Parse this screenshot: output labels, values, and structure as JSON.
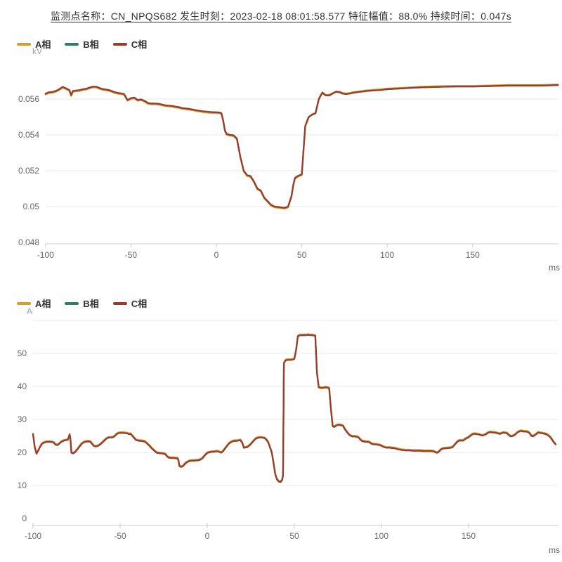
{
  "title": {
    "text": "监测点名称：CN_NPQS682 发生时刻：2023-02-18 08:01:58.577 特征幅值：88.0% 持续时间：0.047s",
    "monitor_point": "CN_NPQS682",
    "event_time": "2023-02-18 08:01:58.577",
    "characteristic_amplitude": "88.0%",
    "duration": "0.047s"
  },
  "colors": {
    "phase_a": "#d0a032",
    "phase_b": "#2e7d64",
    "phase_c": "#9c3a2d",
    "grid_line": "#e8e8e8",
    "axis_line": "#c8ccd0",
    "tick_label": "#666666",
    "unit_label": "#9aa0a6"
  },
  "chart_data": [
    {
      "type": "line",
      "name": "voltage-waveform",
      "y_unit": "kV",
      "x_unit": "ms",
      "xlim": [
        -100,
        200
      ],
      "ylim": [
        0.0478,
        0.0575
      ],
      "grid": true,
      "legend_position": "top-left",
      "x_ticks": [
        -100,
        -50,
        0,
        50,
        100,
        150
      ],
      "x_tick_labels": [
        "-100",
        "-50",
        "0",
        "50",
        "100",
        "150"
      ],
      "y_ticks": [
        0.048,
        0.05,
        0.052,
        0.054,
        0.056
      ],
      "y_tick_labels": [
        "0.048",
        "0.05",
        "0.052",
        "0.054",
        "0.056"
      ],
      "x": [
        -100,
        -98,
        -96,
        -94,
        -92,
        -90,
        -88,
        -86,
        -85,
        -84,
        -82,
        -80,
        -78,
        -76,
        -74,
        -72,
        -70,
        -68,
        -66,
        -64,
        -62,
        -60,
        -58,
        -56,
        -54,
        -52,
        -50,
        -48,
        -46,
        -44,
        -42,
        -40,
        -38,
        -36,
        -34,
        -32,
        -30,
        -28,
        -26,
        -24,
        -22,
        -20,
        -18,
        -16,
        -14,
        -12,
        -10,
        -8,
        -6,
        -4,
        -2,
        0,
        2,
        3,
        4,
        5,
        6,
        8,
        10,
        12,
        14,
        16,
        18,
        20,
        22,
        24,
        26,
        28,
        30,
        32,
        34,
        36,
        38,
        40,
        42,
        44,
        45,
        46,
        48,
        50,
        52,
        54,
        56,
        58,
        60,
        62,
        64,
        66,
        68,
        70,
        72,
        74,
        76,
        78,
        80,
        84,
        88,
        92,
        96,
        100,
        110,
        120,
        130,
        140,
        150,
        160,
        170,
        180,
        190,
        200
      ],
      "series": [
        {
          "name": "A相",
          "color": "#d0a032",
          "derived_from": "C相",
          "delta_before": -5e-05,
          "delta_after": 4e-05,
          "delta_switch_x": 55
        },
        {
          "name": "B相",
          "color": "#2e7d64",
          "derived_from": "C相",
          "delta_before": 0,
          "delta_after": 0,
          "delta_switch_x": 0
        },
        {
          "name": "C相",
          "color": "#9c3a2d",
          "values": [
            0.0563,
            0.05638,
            0.0564,
            0.05645,
            0.05655,
            0.05668,
            0.0566,
            0.0565,
            0.05622,
            0.05645,
            0.05648,
            0.0565,
            0.05655,
            0.05658,
            0.05665,
            0.0567,
            0.05668,
            0.0566,
            0.05655,
            0.05652,
            0.05648,
            0.0564,
            0.05635,
            0.05632,
            0.05628,
            0.05595,
            0.05605,
            0.05608,
            0.05595,
            0.05598,
            0.0559,
            0.05578,
            0.05575,
            0.05575,
            0.05574,
            0.0557,
            0.05565,
            0.05563,
            0.05562,
            0.05558,
            0.05555,
            0.0555,
            0.05548,
            0.05545,
            0.05542,
            0.05538,
            0.05535,
            0.05532,
            0.0553,
            0.05528,
            0.05527,
            0.05526,
            0.05525,
            0.0552,
            0.0548,
            0.05425,
            0.05405,
            0.054,
            0.05398,
            0.0538,
            0.0528,
            0.052,
            0.05175,
            0.0517,
            0.0514,
            0.051,
            0.0509,
            0.0505,
            0.0503,
            0.0501,
            0.05,
            0.04998,
            0.04995,
            0.04993,
            0.05,
            0.0506,
            0.0512,
            0.0516,
            0.05172,
            0.0518,
            0.0545,
            0.055,
            0.05512,
            0.0552,
            0.056,
            0.05635,
            0.0562,
            0.0562,
            0.0563,
            0.0564,
            0.05638,
            0.0563,
            0.05628,
            0.0563,
            0.05635,
            0.0564,
            0.05645,
            0.05648,
            0.0565,
            0.05655,
            0.0566,
            0.05665,
            0.05668,
            0.0567,
            0.0567,
            0.05672,
            0.05675,
            0.05675,
            0.05675,
            0.05678
          ]
        }
      ]
    },
    {
      "type": "line",
      "name": "current-waveform",
      "y_unit": "A",
      "x_unit": "ms",
      "xlim": [
        -100,
        200
      ],
      "ylim": [
        -3,
        60
      ],
      "grid": true,
      "legend_position": "top-left",
      "x_ticks": [
        -100,
        -50,
        0,
        50,
        100,
        150
      ],
      "x_tick_labels": [
        "-100",
        "-50",
        "0",
        "50",
        "100",
        "150"
      ],
      "y_ticks": [
        0,
        10,
        20,
        30,
        40,
        50
      ],
      "y_tick_labels": [
        "0",
        "10",
        "20",
        "30",
        "40",
        "50"
      ],
      "y_gridlines_extra": [
        10,
        20,
        30,
        40,
        50,
        60
      ],
      "x": [
        -100,
        -99,
        -98,
        -97,
        -96,
        -95,
        -94,
        -92,
        -90,
        -89,
        -88,
        -87,
        -86,
        -85,
        -84,
        -83,
        -82,
        -81,
        -80,
        -79,
        -78.5,
        -78,
        -77,
        -76,
        -75,
        -74,
        -73,
        -72,
        -71,
        -70,
        -69,
        -68,
        -67,
        -66,
        -65,
        -64,
        -63,
        -62,
        -61,
        -60,
        -59,
        -58,
        -57,
        -56,
        -55,
        -54,
        -53,
        -52,
        -51,
        -50,
        -49,
        -48,
        -47,
        -46,
        -45,
        -44,
        -43,
        -42,
        -41,
        -40,
        -39,
        -38,
        -37,
        -36,
        -35,
        -34,
        -33,
        -32,
        -31,
        -30,
        -29,
        -28,
        -27,
        -26,
        -25,
        -24,
        -23,
        -22,
        -21,
        -20,
        -19,
        -18,
        -17,
        -16.5,
        -16,
        -15,
        -14,
        -13,
        -12,
        -11,
        -10,
        -9,
        -8,
        -7,
        -6,
        -5,
        -4,
        -3,
        -2,
        -1,
        0,
        1,
        2,
        3,
        4,
        5,
        6,
        7,
        8,
        9,
        10,
        11,
        12,
        13,
        14,
        15,
        16,
        17,
        18,
        19,
        20,
        21,
        22,
        23,
        24,
        25,
        26,
        27,
        28,
        29,
        30,
        31,
        32,
        33,
        34,
        35,
        36,
        37,
        38,
        39,
        40,
        41,
        42,
        43,
        43.5,
        44,
        45,
        46,
        47,
        48,
        49,
        50,
        51,
        52,
        53,
        54,
        55,
        56,
        57,
        58,
        59,
        60,
        61,
        62,
        63,
        64,
        65,
        66,
        67,
        68,
        69,
        70,
        71,
        72,
        73,
        74,
        75,
        76,
        77,
        78,
        79,
        80,
        81,
        82,
        83,
        84,
        85,
        86,
        87,
        88,
        89,
        90,
        91,
        92,
        93,
        94,
        95,
        96,
        97,
        98,
        99,
        100,
        101,
        102,
        103,
        104,
        105,
        106,
        107,
        108,
        109,
        110,
        112,
        114,
        116,
        118,
        120,
        122,
        124,
        126,
        128,
        130,
        131,
        132,
        133,
        134,
        135,
        136,
        138,
        140,
        141,
        142,
        143,
        144,
        145,
        146,
        147,
        148,
        149,
        150,
        151,
        152,
        153,
        154,
        155,
        156,
        157,
        158,
        159,
        160,
        161,
        162,
        163,
        164,
        165,
        166,
        167,
        168,
        169,
        170,
        171,
        172,
        173,
        174,
        175,
        176,
        177,
        178,
        179,
        180,
        181,
        182,
        183,
        184,
        185,
        186,
        187,
        188,
        189,
        190,
        191,
        192,
        193,
        194,
        195,
        196,
        197,
        198,
        199,
        200
      ],
      "series": [
        {
          "name": "A相",
          "color": "#d0a032",
          "derived_from": "C相",
          "delta_before": 0.25,
          "delta_after": 0.25,
          "delta_switch_x": 0
        },
        {
          "name": "B相",
          "color": "#2e7d64",
          "derived_from": "C相",
          "delta_before": 0,
          "delta_after": 0,
          "delta_switch_x": 0
        },
        {
          "name": "C相",
          "color": "#9c3a2d",
          "values": [
            25.5,
            21.5,
            19.6,
            20.5,
            21.6,
            22.5,
            22.9,
            23.2,
            23.2,
            23.1,
            22.9,
            22.3,
            22.2,
            22.6,
            23.1,
            23.4,
            23.6,
            23.7,
            23.8,
            25.4,
            24.0,
            19.9,
            19.7,
            20.0,
            20.6,
            21.3,
            22.0,
            22.6,
            23.0,
            23.2,
            23.3,
            23.3,
            23.2,
            22.5,
            21.9,
            21.8,
            21.9,
            22.2,
            22.6,
            23.1,
            23.6,
            24.1,
            24.4,
            24.5,
            24.5,
            24.6,
            25.0,
            25.5,
            25.8,
            25.9,
            25.9,
            25.9,
            25.8,
            25.8,
            25.5,
            25.6,
            25.0,
            24.4,
            23.8,
            23.6,
            23.5,
            23.5,
            23.4,
            23.3,
            22.9,
            22.4,
            21.9,
            21.3,
            20.8,
            20.3,
            19.9,
            19.8,
            19.7,
            19.7,
            19.6,
            19.4,
            18.7,
            18.4,
            18.3,
            18.3,
            18.3,
            18.2,
            18.2,
            17.5,
            15.9,
            15.6,
            15.8,
            16.4,
            16.9,
            17.2,
            17.4,
            17.5,
            17.5,
            17.5,
            17.6,
            17.6,
            17.8,
            18.1,
            18.7,
            19.3,
            19.8,
            20.0,
            20.1,
            20.2,
            20.2,
            20.3,
            20.3,
            20.1,
            19.9,
            20.3,
            21.0,
            21.7,
            22.4,
            22.9,
            23.2,
            23.4,
            23.5,
            23.5,
            23.6,
            23.7,
            23.0,
            21.4,
            21.5,
            21.6,
            22.0,
            22.5,
            23.1,
            23.7,
            24.2,
            24.4,
            24.5,
            24.5,
            24.4,
            24.3,
            23.8,
            23.0,
            21.5,
            20.0,
            17.0,
            13.5,
            11.8,
            11.2,
            11.0,
            11.6,
            13.0,
            47.0,
            47.9,
            48.0,
            48.0,
            48.0,
            48.1,
            48.3,
            51.0,
            55.2,
            55.4,
            55.5,
            55.5,
            55.5,
            55.5,
            55.6,
            55.5,
            55.5,
            55.4,
            55.3,
            44.0,
            39.7,
            39.5,
            39.5,
            39.6,
            39.7,
            39.6,
            39.4,
            33.0,
            27.9,
            27.7,
            28.1,
            28.3,
            28.3,
            28.2,
            28.0,
            27.0,
            26.3,
            25.6,
            25.1,
            24.9,
            24.8,
            24.8,
            24.7,
            24.4,
            23.8,
            23.4,
            23.3,
            23.2,
            23.2,
            23.1,
            22.7,
            22.5,
            22.4,
            22.4,
            22.3,
            22.2,
            22.0,
            21.7,
            21.5,
            21.4,
            21.4,
            21.4,
            21.3,
            21.3,
            21.2,
            21.0,
            20.9,
            20.7,
            20.6,
            20.6,
            20.5,
            20.5,
            20.5,
            20.4,
            20.4,
            20.4,
            20.3,
            20.0,
            19.9,
            20.2,
            20.8,
            21.1,
            21.2,
            21.3,
            21.4,
            21.7,
            22.3,
            22.9,
            23.4,
            23.6,
            23.6,
            23.6,
            24.0,
            24.3,
            24.6,
            25.0,
            25.4,
            25.6,
            25.6,
            25.5,
            25.4,
            25.2,
            25.1,
            25.3,
            25.5,
            25.9,
            26.1,
            26.1,
            26.0,
            26.0,
            25.9,
            25.7,
            25.6,
            25.8,
            26.0,
            25.9,
            25.8,
            25.3,
            24.9,
            24.9,
            25.1,
            25.5,
            26.0,
            26.3,
            26.5,
            26.4,
            26.3,
            26.3,
            26.2,
            25.8,
            25.0,
            24.9,
            25.2,
            25.6,
            26.0,
            25.9,
            25.8,
            25.7,
            25.6,
            25.4,
            25.0,
            24.5,
            23.8,
            23.0,
            22.4
          ]
        }
      ]
    }
  ]
}
